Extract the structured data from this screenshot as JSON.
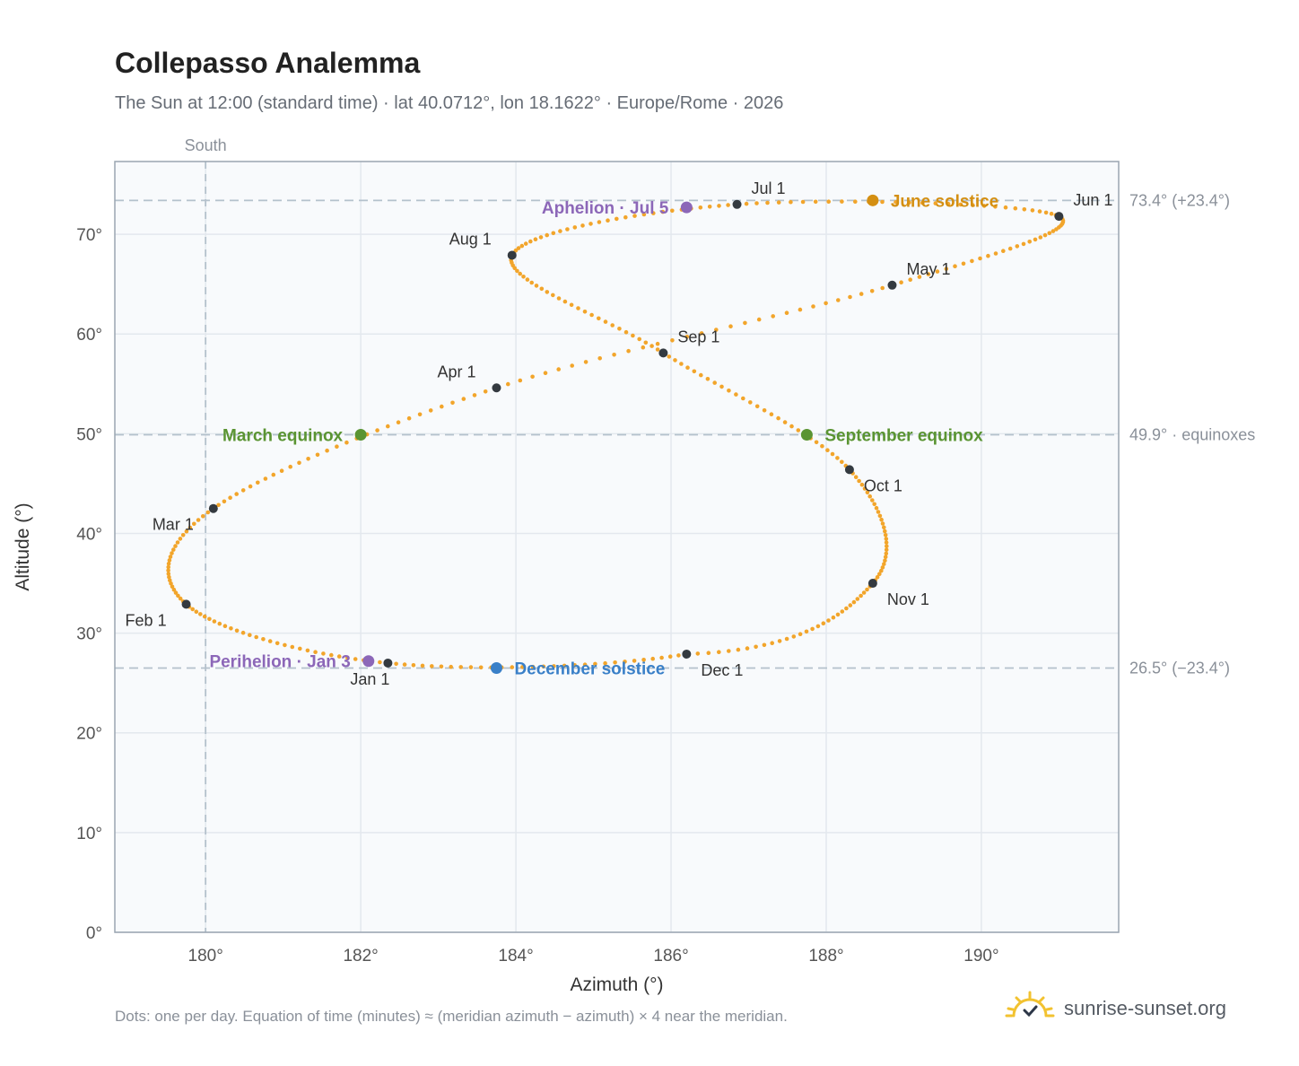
{
  "title": "Collepasso Analemma",
  "subtitle": "The Sun at 12:00 (standard time) · lat 40.0712°, lon 18.1622° · Europe/Rome · 2026",
  "footnote": "Dots: one per day. Equation of time (minutes) ≈ (meridian azimuth − azimuth) × 4 near the meridian.",
  "brand": {
    "name": "sunrise-sunset.org",
    "icon": "sun-logo-icon"
  },
  "colors": {
    "path": "#f2a52b",
    "month_marker": "#343a40",
    "equinox": "#5a9432",
    "june_solstice": "#d48f12",
    "december_solstice": "#3a80c8",
    "apsis": "#8c67b8",
    "reference_line": "#b4c1cc",
    "plot_bg": "#f8fafc",
    "grid": "#e3e8ee"
  },
  "chart_data": {
    "type": "scatter",
    "title": "Collepasso Analemma",
    "xlabel": "Azimuth (°)",
    "ylabel": "Altitude (°)",
    "xlim": [
      178.83,
      191.77
    ],
    "ylim": [
      0,
      77.3
    ],
    "xticks": [
      180,
      182,
      184,
      186,
      188,
      190
    ],
    "xtick_labels": [
      "180°",
      "182°",
      "184°",
      "186°",
      "188°",
      "190°"
    ],
    "yticks": [
      0,
      10,
      20,
      30,
      40,
      50,
      60,
      70
    ],
    "ytick_labels": [
      "0°",
      "10°",
      "20°",
      "30°",
      "40°",
      "50°",
      "60°",
      "70°"
    ],
    "grid": true,
    "south_line": {
      "azimuth": 180,
      "label": "South"
    },
    "reference_lines": [
      {
        "altitude": 73.4,
        "label": "73.4° (+23.4°)"
      },
      {
        "altitude": 49.9,
        "label": "49.9° · equinoxes"
      },
      {
        "altitude": 26.5,
        "label": "26.5° (−23.4°)"
      }
    ],
    "path_anchors": [
      {
        "day": 1,
        "azimuth": 182.35,
        "altitude": 27.0
      },
      {
        "day": 32,
        "azimuth": 179.75,
        "altitude": 32.9
      },
      {
        "day": 60,
        "azimuth": 180.1,
        "altitude": 42.5
      },
      {
        "day": 91,
        "azimuth": 183.75,
        "altitude": 54.6
      },
      {
        "day": 121,
        "azimuth": 188.85,
        "altitude": 64.9
      },
      {
        "day": 152,
        "azimuth": 191.0,
        "altitude": 71.8
      },
      {
        "day": 182,
        "azimuth": 186.85,
        "altitude": 73.0
      },
      {
        "day": 213,
        "azimuth": 183.95,
        "altitude": 67.9
      },
      {
        "day": 244,
        "azimuth": 185.9,
        "altitude": 58.1
      },
      {
        "day": 274,
        "azimuth": 188.3,
        "altitude": 46.4
      },
      {
        "day": 305,
        "azimuth": 188.6,
        "altitude": 35.0
      },
      {
        "day": 335,
        "azimuth": 186.2,
        "altitude": 27.9
      },
      {
        "day": 366,
        "azimuth": 182.35,
        "altitude": 27.0
      }
    ],
    "month_markers": [
      {
        "label": "Jan 1",
        "azimuth": 182.35,
        "altitude": 27.0
      },
      {
        "label": "Feb 1",
        "azimuth": 179.75,
        "altitude": 32.9
      },
      {
        "label": "Mar 1",
        "azimuth": 180.1,
        "altitude": 42.5
      },
      {
        "label": "Apr 1",
        "azimuth": 183.75,
        "altitude": 54.6
      },
      {
        "label": "May 1",
        "azimuth": 188.85,
        "altitude": 64.9
      },
      {
        "label": "Jun 1",
        "azimuth": 191.0,
        "altitude": 71.8
      },
      {
        "label": "Jul 1",
        "azimuth": 186.85,
        "altitude": 73.0
      },
      {
        "label": "Aug 1",
        "azimuth": 183.95,
        "altitude": 67.9
      },
      {
        "label": "Sep 1",
        "azimuth": 185.9,
        "altitude": 58.1
      },
      {
        "label": "Oct 1",
        "azimuth": 188.3,
        "altitude": 46.4
      },
      {
        "label": "Nov 1",
        "azimuth": 188.6,
        "altitude": 35.0
      },
      {
        "label": "Dec 1",
        "azimuth": 186.2,
        "altitude": 27.9
      }
    ],
    "events": [
      {
        "label": "March equinox",
        "azimuth": 182.0,
        "altitude": 49.9,
        "color_key": "equinox"
      },
      {
        "label": "September equinox",
        "azimuth": 187.75,
        "altitude": 49.9,
        "color_key": "equinox"
      },
      {
        "label": "June solstice",
        "azimuth": 188.6,
        "altitude": 73.4,
        "color_key": "june_solstice"
      },
      {
        "label": "December solstice",
        "azimuth": 183.75,
        "altitude": 26.5,
        "color_key": "december_solstice"
      },
      {
        "label": "Aphelion · Jul 5",
        "azimuth": 186.2,
        "altitude": 72.7,
        "color_key": "apsis"
      },
      {
        "label": "Perihelion · Jan 3",
        "azimuth": 182.1,
        "altitude": 27.2,
        "color_key": "apsis"
      }
    ]
  }
}
